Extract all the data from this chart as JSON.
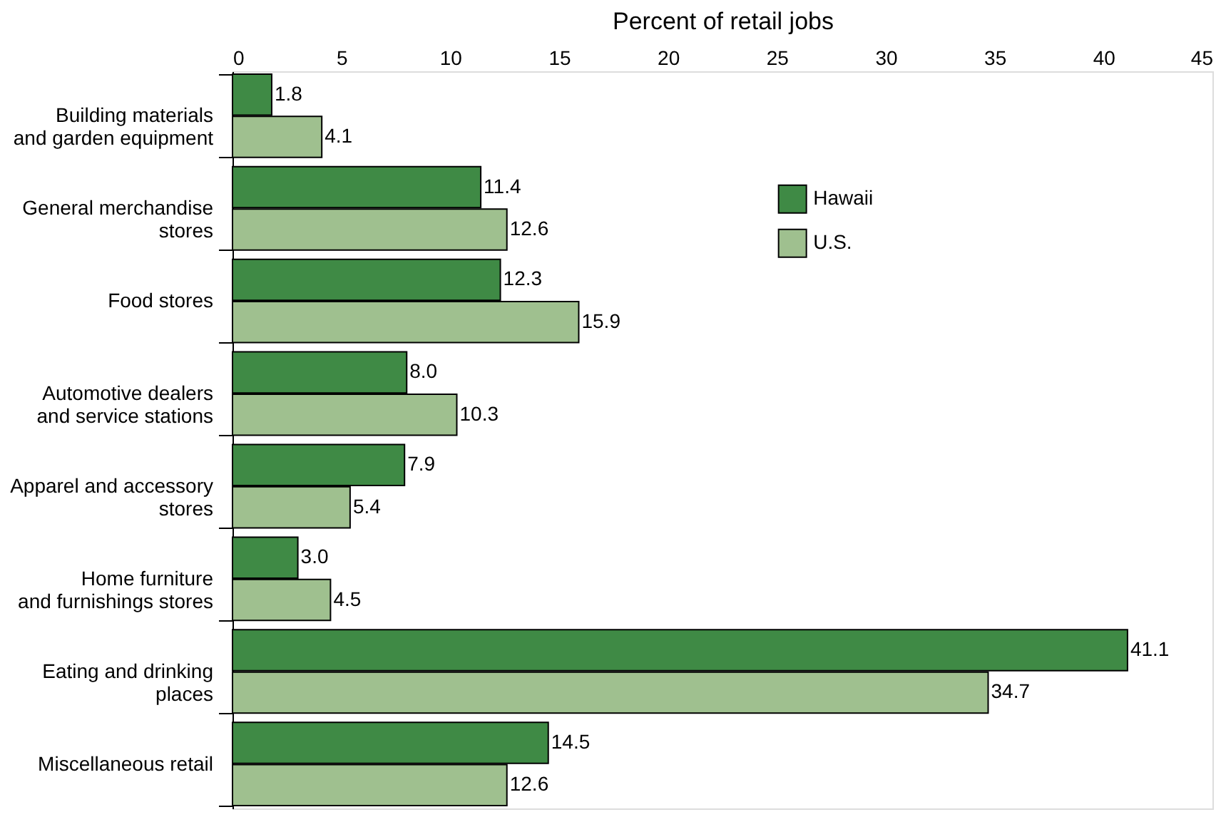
{
  "chart_data": {
    "type": "bar",
    "orientation": "horizontal",
    "xlabel": "Percent of retail jobs",
    "categories": [
      "Building materials\nand garden equipment",
      "General merchandise\nstores",
      "Food stores",
      "Automotive dealers\nand service stations",
      "Apparel and accessory\nstores",
      "Home furniture\nand furnishings stores",
      "Eating and drinking\nplaces",
      "Miscellaneous retail"
    ],
    "series": [
      {
        "name": "Hawaii",
        "color": "#3f8a45",
        "values": [
          1.8,
          11.4,
          12.3,
          8,
          7.9,
          3,
          41.1,
          14.5
        ],
        "value_labels": [
          "1.8",
          "11.4",
          "12.3",
          "8.0",
          "7.9",
          "3.0",
          "41.1",
          "14.5"
        ]
      },
      {
        "name": "U.S.",
        "color": "#9fc08f",
        "values": [
          4.1,
          12.6,
          15.9,
          10.3,
          5.4,
          4.5,
          34.7,
          12.6
        ],
        "value_labels": [
          "4.1",
          "12.6",
          "15.9",
          "10.3",
          "5.4",
          "4.5",
          "34.7",
          "12.6"
        ]
      }
    ],
    "xlim": [
      0,
      45
    ],
    "xticks": [
      0,
      5,
      10,
      15,
      20,
      25,
      30,
      35,
      40,
      45
    ],
    "legend": "right",
    "grid": false
  }
}
